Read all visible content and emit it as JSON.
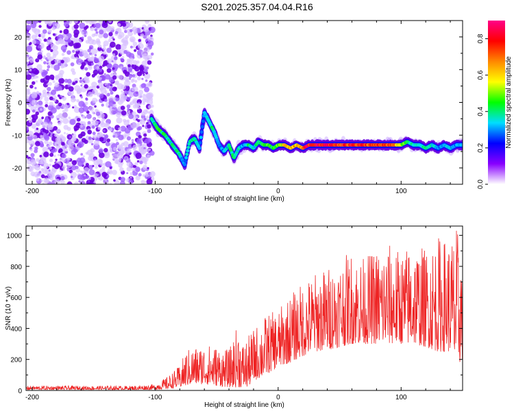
{
  "title": "S201.2025.357.04.04.R16",
  "chart_data": [
    {
      "type": "heatmap",
      "xlabel": "Height of straight line (km)",
      "ylabel": "Frequency (Hz)",
      "xlim": [
        -205,
        150
      ],
      "ylim": [
        -25,
        25
      ],
      "xticks": [
        -200,
        -100,
        0,
        100
      ],
      "yticks": [
        -20,
        -10,
        0,
        10,
        20
      ],
      "colorbar": {
        "label": "Normalized spectral amplitude",
        "range": [
          0,
          0.9
        ],
        "ticks": [
          0.0,
          0.2,
          0.4,
          0.6,
          0.8
        ],
        "colors": [
          "#ffffff",
          "#8800ff",
          "#0000ff",
          "#00ddff",
          "#00ff00",
          "#ffff00",
          "#ff8800",
          "#ff0000",
          "#ff0088"
        ]
      },
      "noise_region_x": [
        -205,
        -102
      ],
      "ridge": {
        "x": [
          -103,
          -98,
          -92,
          -88,
          -84,
          -80,
          -76,
          -72,
          -68,
          -64,
          -60,
          -56,
          -52,
          -48,
          -44,
          -40,
          -36,
          -32,
          -28,
          -24,
          -20,
          -16,
          -12,
          -8,
          -4,
          0,
          5,
          10,
          15,
          20,
          25,
          30,
          40,
          50,
          60,
          70,
          80,
          90,
          100,
          105,
          110,
          115,
          120,
          125,
          130,
          135,
          140,
          145,
          150
        ],
        "y": [
          -5,
          -8,
          -10,
          -12,
          -14,
          -16,
          -19,
          -12,
          -11,
          -14,
          -3,
          -6,
          -9,
          -13,
          -15,
          -13,
          -17,
          -14,
          -13,
          -13,
          -14,
          -12,
          -13,
          -13,
          -14,
          -13,
          -13,
          -14,
          -13,
          -14,
          -13,
          -13,
          -13,
          -13,
          -13,
          -13,
          -13,
          -13,
          -13,
          -12,
          -13,
          -13,
          -14,
          -13,
          -14,
          -13,
          -14,
          -13,
          -13
        ],
        "amp": [
          0.35,
          0.45,
          0.4,
          0.35,
          0.4,
          0.35,
          0.3,
          0.35,
          0.4,
          0.3,
          0.3,
          0.4,
          0.35,
          0.3,
          0.3,
          0.35,
          0.45,
          0.35,
          0.3,
          0.4,
          0.35,
          0.4,
          0.45,
          0.5,
          0.4,
          0.5,
          0.6,
          0.65,
          0.6,
          0.7,
          0.8,
          0.85,
          0.8,
          0.75,
          0.8,
          0.75,
          0.7,
          0.75,
          0.55,
          0.4,
          0.35,
          0.35,
          0.4,
          0.35,
          0.3,
          0.3,
          0.35,
          0.3,
          0.3
        ]
      }
    },
    {
      "type": "line",
      "xlabel": "Height of straight line (km)",
      "ylabel": "SNR (10 * v/v)",
      "xlim": [
        -205,
        150
      ],
      "ylim": [
        0,
        1060
      ],
      "xticks": [
        -200,
        -100,
        0,
        100
      ],
      "yticks": [
        0,
        200,
        400,
        600,
        800,
        1000
      ],
      "color": "#ee2222",
      "envelope": {
        "x": [
          -205,
          -180,
          -150,
          -120,
          -100,
          -90,
          -80,
          -75,
          -70,
          -60,
          -50,
          -40,
          -32,
          -30,
          -25,
          -20,
          -10,
          0,
          10,
          20,
          30,
          40,
          50,
          60,
          70,
          80,
          90,
          100,
          110,
          120,
          130,
          140,
          145,
          150
        ],
        "low": [
          5,
          5,
          5,
          5,
          5,
          10,
          20,
          30,
          40,
          40,
          30,
          20,
          20,
          20,
          20,
          60,
          100,
          150,
          180,
          220,
          250,
          260,
          280,
          300,
          300,
          300,
          300,
          300,
          300,
          280,
          250,
          250,
          150,
          200
        ],
        "high": [
          30,
          30,
          30,
          30,
          40,
          90,
          160,
          260,
          280,
          300,
          290,
          260,
          450,
          310,
          340,
          400,
          490,
          520,
          620,
          700,
          760,
          800,
          850,
          900,
          860,
          920,
          950,
          900,
          960,
          920,
          1000,
          980,
          1060,
          950
        ]
      }
    }
  ]
}
